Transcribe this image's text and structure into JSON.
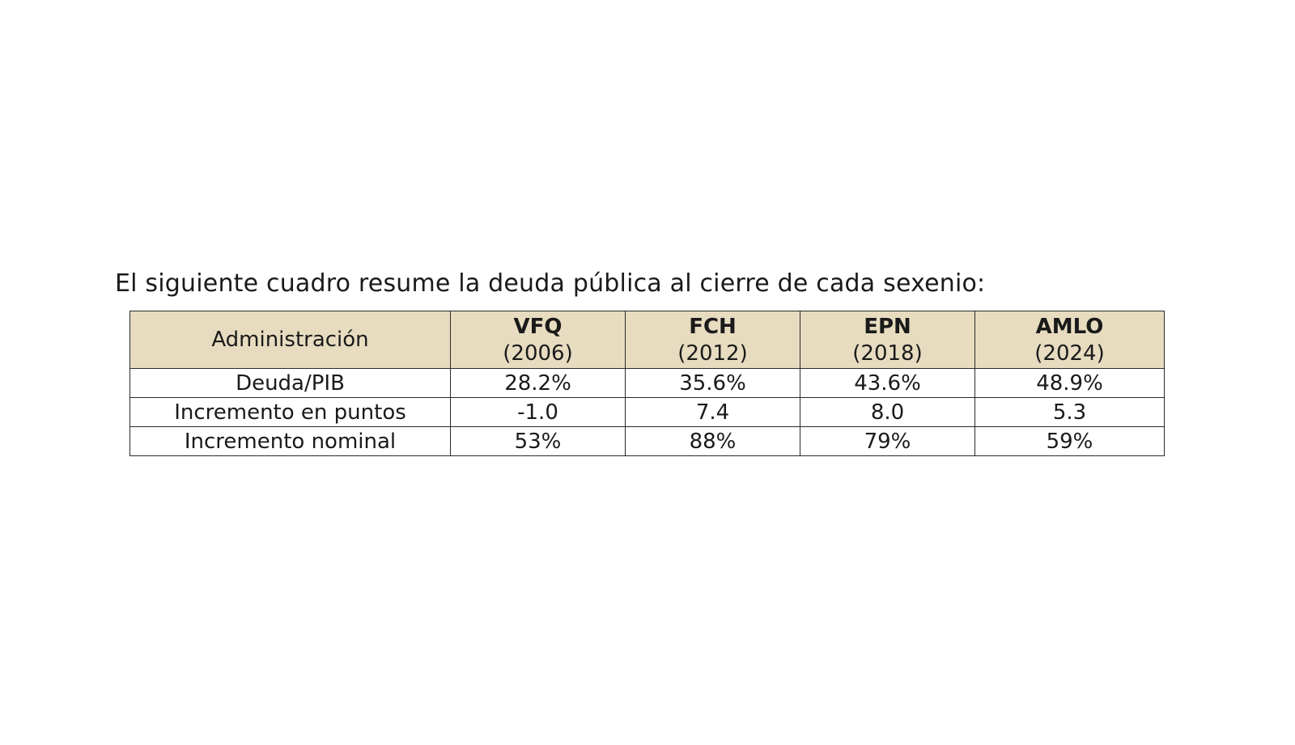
{
  "intro": "El siguiente cuadro resume la deuda pública al cierre de cada sexenio:",
  "table": {
    "header_label": "Administración",
    "columns": [
      {
        "abbr": "VFQ",
        "year": "(2006)"
      },
      {
        "abbr": "FCH",
        "year": "(2012)"
      },
      {
        "abbr": "EPN",
        "year": "(2018)"
      },
      {
        "abbr": "AMLO",
        "year": "(2024)"
      }
    ],
    "rows": [
      {
        "label": "Deuda/PIB",
        "values": [
          "28.2%",
          "35.6%",
          "43.6%",
          "48.9%"
        ]
      },
      {
        "label": "Incremento en puntos",
        "values": [
          "-1.0",
          "7.4",
          "8.0",
          "5.3"
        ]
      },
      {
        "label": "Incremento nominal",
        "values": [
          "53%",
          "88%",
          "79%",
          "59%"
        ]
      }
    ],
    "header_bg": "#e7dcc0"
  }
}
